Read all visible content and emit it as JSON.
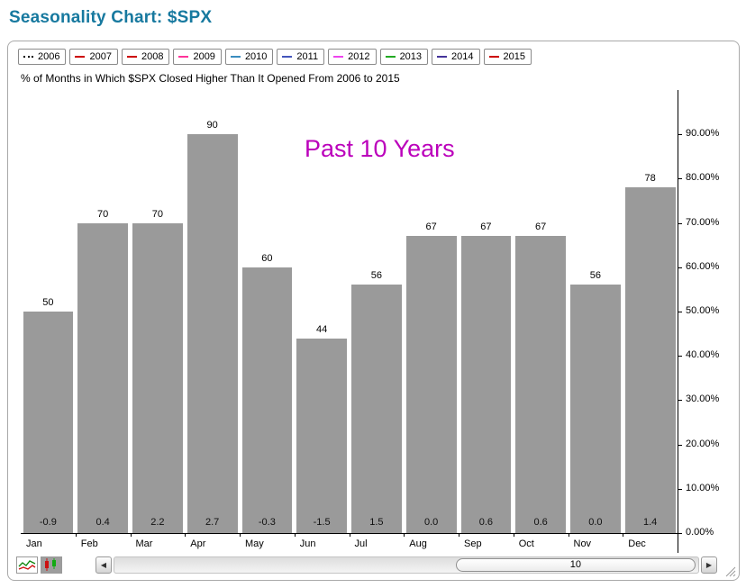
{
  "page_title": "Seasonality Chart: $SPX",
  "colors": {
    "title": "#17799f",
    "bar": "#9a9a9a",
    "annotation": "#bb00bb",
    "axis": "#000000"
  },
  "legend": {
    "years": [
      {
        "label": "2006",
        "color": "#000000",
        "style": "dotted"
      },
      {
        "label": "2007",
        "color": "#cc0000",
        "style": "solid"
      },
      {
        "label": "2008",
        "color": "#cc0000",
        "style": "solid"
      },
      {
        "label": "2009",
        "color": "#ff3399",
        "style": "solid"
      },
      {
        "label": "2010",
        "color": "#3b8dbf",
        "style": "solid"
      },
      {
        "label": "2011",
        "color": "#4455bb",
        "style": "solid"
      },
      {
        "label": "2012",
        "color": "#ee44ee",
        "style": "solid"
      },
      {
        "label": "2013",
        "color": "#22aa22",
        "style": "solid"
      },
      {
        "label": "2014",
        "color": "#443399",
        "style": "solid"
      },
      {
        "label": "2015",
        "color": "#cc0000",
        "style": "solid"
      }
    ]
  },
  "annotation": {
    "text": "Past 10 Years"
  },
  "chart_data": {
    "type": "bar",
    "title": "% of Months in Which $SPX Closed Higher Than It Opened From 2006 to 2015",
    "categories": [
      "Jan",
      "Feb",
      "Mar",
      "Apr",
      "May",
      "Jun",
      "Jul",
      "Aug",
      "Sep",
      "Oct",
      "Nov",
      "Dec"
    ],
    "series": [
      {
        "name": "percent_closed_higher",
        "unit": "%",
        "values": [
          50,
          70,
          70,
          90,
          60,
          44,
          56,
          67,
          67,
          67,
          56,
          78
        ]
      },
      {
        "name": "average_change_labels",
        "values": [
          "-0.9",
          "0.4",
          "2.2",
          "2.7",
          "-0.3",
          "-1.5",
          "1.5",
          "0.0",
          "0.6",
          "0.6",
          "0.0",
          "1.4"
        ]
      }
    ],
    "ylim": [
      0,
      100
    ],
    "y_ticks": [
      {
        "value": 90,
        "label": "90.00%"
      },
      {
        "value": 80,
        "label": "80.00%"
      },
      {
        "value": 70,
        "label": "70.00%"
      },
      {
        "value": 60,
        "label": "60.00%"
      },
      {
        "value": 50,
        "label": "50.00%"
      },
      {
        "value": 40,
        "label": "40.00%"
      },
      {
        "value": 30,
        "label": "30.00%"
      },
      {
        "value": 20,
        "label": "20.00%"
      },
      {
        "value": 10,
        "label": "10.00%"
      },
      {
        "value": 0,
        "label": "0.00%"
      }
    ],
    "grid": false,
    "legend_position": "top",
    "annotation": "Past 10 Years"
  },
  "toolbar": {
    "chart_style_icons": [
      "line-chart-style-icon",
      "candlestick-style-icon"
    ],
    "scroll_left_icon": "◀",
    "scroll_right_icon": "▶",
    "scroll_value": "10"
  }
}
